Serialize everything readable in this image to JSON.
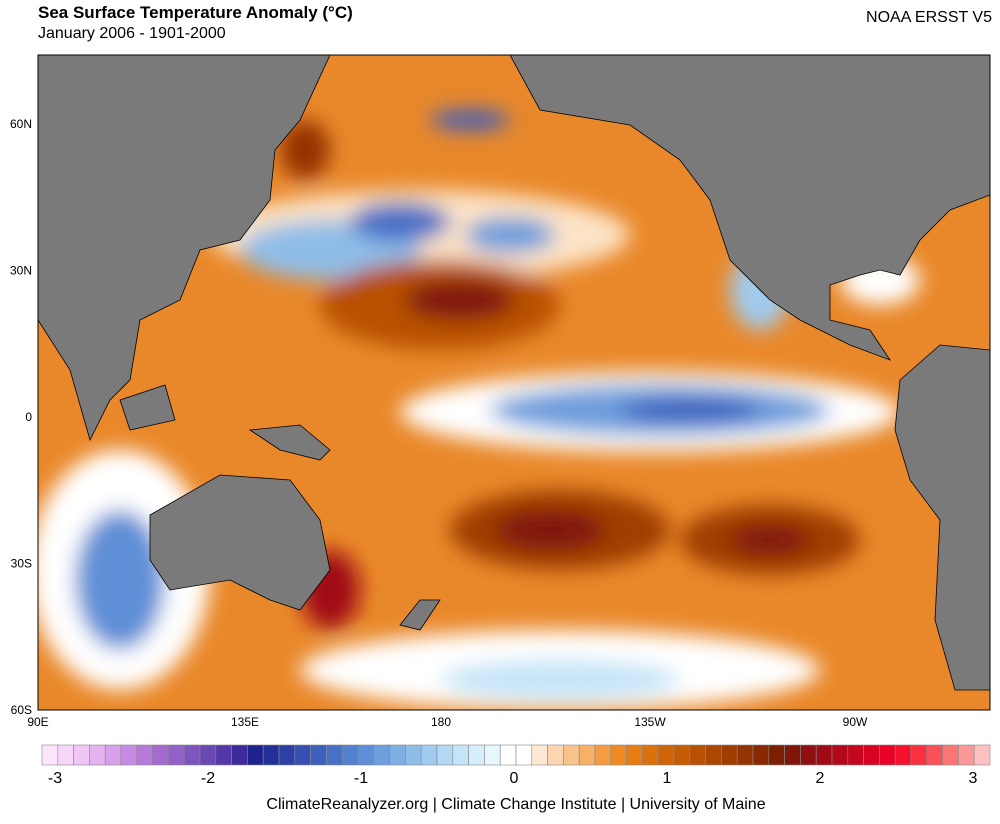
{
  "header": {
    "title": "Sea Surface Temperature Anomaly (°C)",
    "subtitle": "January 2006 - 1901-2000",
    "dataset": "NOAA ERSST V5"
  },
  "map": {
    "lat_labels": [
      "60N",
      "30N",
      "0",
      "30S",
      "60S"
    ],
    "lon_labels": [
      "90E",
      "135E",
      "180",
      "135W",
      "90W"
    ]
  },
  "colorbar": {
    "range": [
      -3,
      3
    ],
    "ticks": [
      -3,
      -2,
      -1,
      0,
      1,
      2,
      3
    ],
    "colors": [
      "#fde6fd",
      "#f7d7f9",
      "#efc6f5",
      "#e4b3f0",
      "#d8a0ea",
      "#c88be3",
      "#b67ad9",
      "#a36bd0",
      "#9160c8",
      "#7e55be",
      "#6a48b4",
      "#5538a8",
      "#3f2a9c",
      "#1f2390",
      "#23309a",
      "#2c40a6",
      "#3550b2",
      "#3d5fbd",
      "#4870c6",
      "#5380cf",
      "#5e8fd6",
      "#6e9edc",
      "#7eaee2",
      "#8fbde8",
      "#a0cbee",
      "#b2d8f3",
      "#c4e4f7",
      "#d6eefb",
      "#e8f6fd",
      "#ffffff",
      "#ffffff",
      "#fde9d4",
      "#fbd6b0",
      "#f9c48c",
      "#f7b068",
      "#f49c44",
      "#ef8a22",
      "#e77c10",
      "#dc700a",
      "#d06507",
      "#c45b05",
      "#b85104",
      "#ac4703",
      "#a03d02",
      "#943302",
      "#882901",
      "#7c1f01",
      "#80150a",
      "#901012",
      "#a00c16",
      "#b2081a",
      "#c4061e",
      "#d60422",
      "#e80226",
      "#f5102e",
      "#f83040",
      "#fa5058",
      "#fc7474",
      "#fd9898",
      "#fec0c0"
    ]
  },
  "footer": "ClimateReanalyzer.org | Climate Change Institute | University of Maine"
}
